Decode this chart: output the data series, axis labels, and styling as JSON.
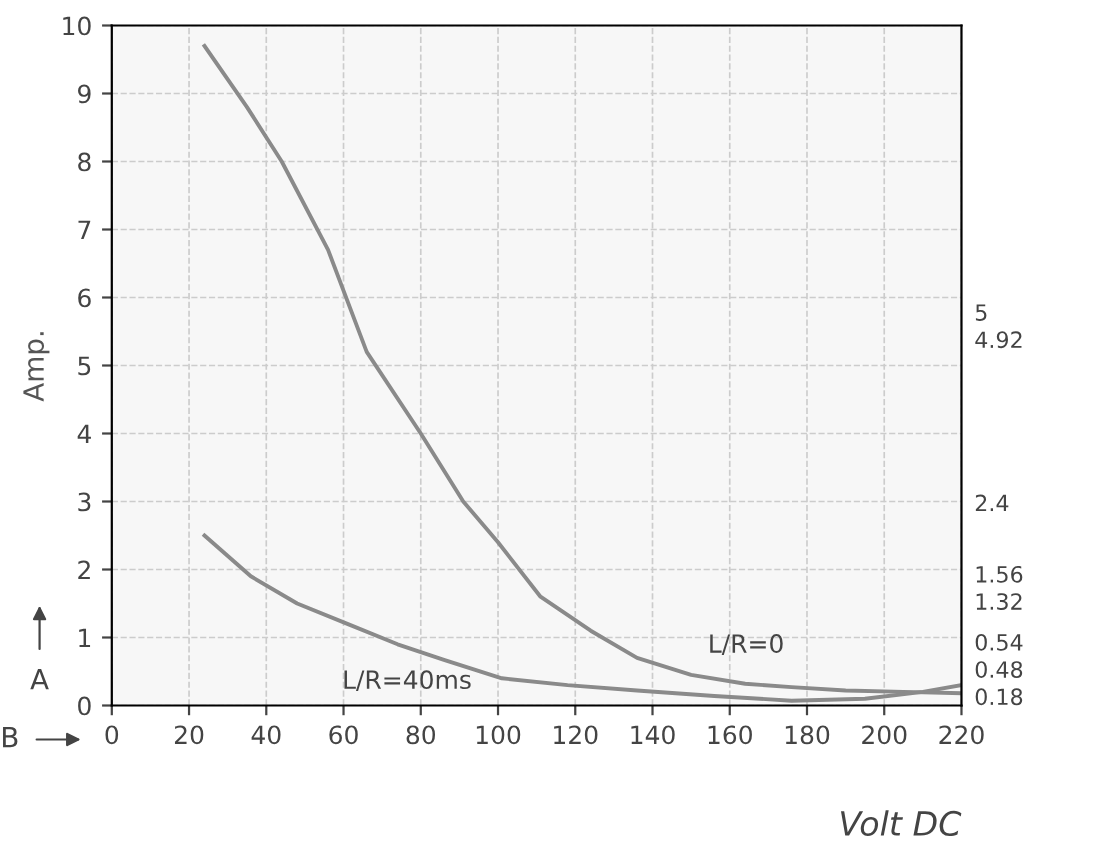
{
  "chart_data": {
    "type": "line",
    "xlabel": "Volt DC",
    "ylabel": "Amp.",
    "xlim": [
      0,
      220
    ],
    "xticks": [
      0,
      20,
      40,
      60,
      80,
      100,
      120,
      140,
      160,
      180,
      200,
      220
    ],
    "ylim": [
      0,
      10
    ],
    "yticks": [
      0,
      1,
      2,
      3,
      4,
      5,
      6,
      7,
      8,
      9,
      10
    ],
    "grid": true,
    "marker": "none",
    "line_style": "solid",
    "series": [
      {
        "name": "L/R=0",
        "color": "#8a8a8a",
        "x": [
          24,
          35,
          44,
          56,
          66,
          80,
          91,
          100,
          111,
          124,
          136,
          150,
          164,
          176,
          190,
          205,
          220
        ],
        "values": [
          9.7,
          8.8,
          8.0,
          6.7,
          5.2,
          4.0,
          3.0,
          2.4,
          1.6,
          1.1,
          0.7,
          0.45,
          0.32,
          0.27,
          0.22,
          0.2,
          0.18
        ]
      },
      {
        "name": "L/R=40ms",
        "color": "#8a8a8a",
        "x": [
          24,
          36,
          48,
          61,
          74,
          86,
          101,
          118,
          136,
          156,
          176,
          195,
          210,
          220
        ],
        "values": [
          2.5,
          1.9,
          1.5,
          1.2,
          0.9,
          0.67,
          0.4,
          0.3,
          0.22,
          0.14,
          0.07,
          0.1,
          0.2,
          0.3
        ]
      }
    ],
    "annotations": [
      "5",
      "4.92",
      "2.4",
      "1.56",
      "1.32",
      "0.54",
      "0.48",
      "0.18",
      "A",
      "B"
    ]
  }
}
